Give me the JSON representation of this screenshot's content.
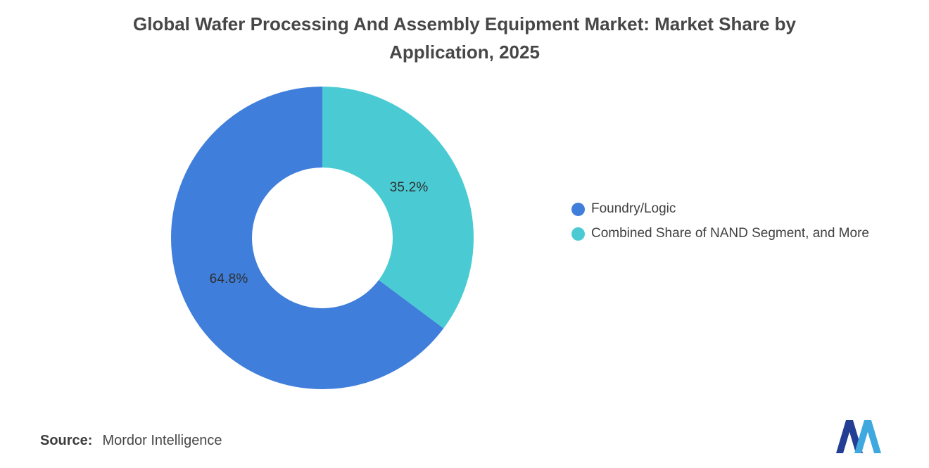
{
  "title_lines": [
    "Global Wafer Processing And Assembly Equipment Market: Market Share by",
    "Application, 2025"
  ],
  "chart_data": {
    "type": "pie",
    "donut": true,
    "title": "Global Wafer Processing And Assembly Equipment Market: Market Share by Application, 2025",
    "slices": [
      {
        "name": "Foundry/Logic",
        "value": 64.8,
        "label": "64.8%",
        "color": "#3F7EDB"
      },
      {
        "name": "Combined Share of NAND Segment, and More",
        "value": 35.2,
        "label": "35.2%",
        "color": "#4ACBD3"
      }
    ],
    "draw_order": [
      1,
      0
    ],
    "start_angle_deg": 0,
    "direction": "clockwise",
    "legend_position": "right"
  },
  "footer": {
    "source_label": "Source:",
    "source_value": "Mordor Intelligence"
  },
  "brand": {
    "logo_dark": "#233E93",
    "logo_light": "#3FA9DF"
  }
}
